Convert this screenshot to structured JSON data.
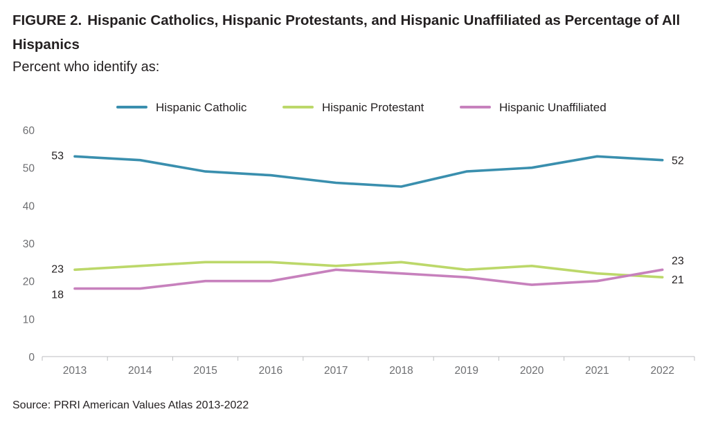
{
  "figure": {
    "label": "FIGURE 2.",
    "title": "Hispanic Catholics, Hispanic Protestants, and Hispanic Unaffiliated as Percentage of All Hispanics",
    "subtitle": "Percent who identify as:",
    "source": "Source: PRRI American Values Atlas 2013-2022"
  },
  "chart_data": {
    "type": "line",
    "title": "Hispanic Catholics, Hispanic Protestants, and Hispanic Unaffiliated as Percentage of All Hispanics",
    "subtitle": "Percent who identify as:",
    "xlabel": "",
    "ylabel": "",
    "ylim": [
      0,
      60
    ],
    "yticks": [
      0,
      10,
      20,
      30,
      40,
      50,
      60
    ],
    "grid": false,
    "legend": "top-center",
    "x": [
      "2013",
      "2014",
      "2015",
      "2016",
      "2017",
      "2018",
      "2019",
      "2020",
      "2021",
      "2022"
    ],
    "series": [
      {
        "name": "Hispanic Catholic",
        "color": "#3a8fae",
        "values": [
          53,
          52,
          49,
          48,
          46,
          45,
          49,
          50,
          53,
          52
        ],
        "start_label": "53",
        "end_label": "52"
      },
      {
        "name": "Hispanic Protestant",
        "color": "#bcd86a",
        "values": [
          23,
          24,
          25,
          25,
          24,
          25,
          23,
          24,
          22,
          21
        ],
        "start_label": "23",
        "end_label": "21"
      },
      {
        "name": "Hispanic Unaffiliated",
        "color": "#c781bd",
        "values": [
          18,
          18,
          20,
          20,
          23,
          22,
          21,
          19,
          20,
          23
        ],
        "start_label": "18",
        "end_label": "23"
      }
    ]
  }
}
